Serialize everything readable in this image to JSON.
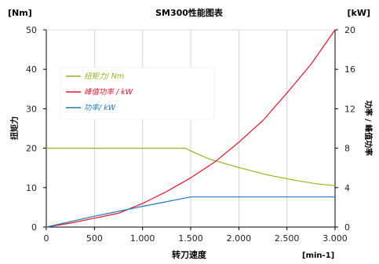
{
  "chart_data": {
    "type": "line",
    "title": "SM300性能图表",
    "xlabel": "转刀速度",
    "x_unit": "[min-1]",
    "ylabel_left": "扭矩力",
    "y_unit_left": "[Nm]",
    "ylabel_right": "功率 / 峰值功率",
    "y_unit_right": "[kW]",
    "xlim": [
      0,
      3000
    ],
    "ylim_left": [
      0,
      50
    ],
    "ylim_right": [
      0,
      20
    ],
    "x_ticks": [
      0,
      500,
      1000,
      1500,
      2000,
      2500,
      3000
    ],
    "x_tick_labels": [
      "0",
      "500",
      "1.000",
      "1.500",
      "2.000",
      "2.500",
      "3.000"
    ],
    "y_ticks_left": [
      0,
      10,
      20,
      30,
      40,
      50
    ],
    "y_tick_labels_left": [
      "0",
      "10",
      "20",
      "30",
      "40",
      "50"
    ],
    "y_ticks_right": [
      0,
      4,
      8,
      12,
      16,
      20
    ],
    "y_tick_labels_right": [
      "0",
      "4",
      "8",
      "12",
      "16",
      "20"
    ],
    "grid": "vertical",
    "legend_position": "upper-left",
    "series": [
      {
        "name": "扭矩力/ Nm",
        "axis": "left",
        "color": "#9ab01e",
        "x": [
          0,
          500,
          1000,
          1450,
          1500,
          1700,
          2000,
          2300,
          2600,
          2800,
          3000
        ],
        "values": [
          20,
          20,
          20,
          20,
          19.3,
          17.2,
          15.1,
          13.2,
          11.8,
          11,
          10.5
        ]
      },
      {
        "name": "峰值功率 / kW",
        "axis": "right",
        "color": "#e31a2a",
        "x": [
          0,
          250,
          500,
          750,
          1000,
          1250,
          1500,
          1750,
          2000,
          2250,
          2500,
          2750,
          3000
        ],
        "values": [
          0,
          0.4,
          0.9,
          1.4,
          2.4,
          3.6,
          5.0,
          6.6,
          8.6,
          10.8,
          13.6,
          16.5,
          20
        ]
      },
      {
        "name": "功率/ kW",
        "axis": "right",
        "color": "#1f78c1",
        "x": [
          0,
          500,
          1000,
          1500,
          2000,
          2500,
          3000
        ],
        "values": [
          0,
          1.1,
          2.1,
          3.05,
          3.05,
          3.05,
          3.05
        ]
      }
    ]
  }
}
